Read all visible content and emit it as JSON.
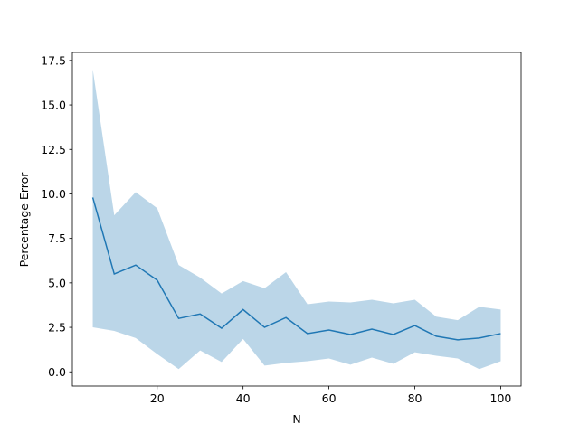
{
  "chart_data": {
    "type": "line",
    "xlabel": "N",
    "ylabel": "Percentage Error",
    "x": [
      5,
      10,
      15,
      20,
      25,
      30,
      35,
      40,
      45,
      50,
      55,
      60,
      65,
      70,
      75,
      80,
      85,
      90,
      95,
      100
    ],
    "series": [
      {
        "color": "#1f77b4",
        "values": [
          9.8,
          5.5,
          6.0,
          5.15,
          3.0,
          3.25,
          2.45,
          3.5,
          2.5,
          3.05,
          2.15,
          2.35,
          2.1,
          2.4,
          2.1,
          2.6,
          2.0,
          1.8,
          1.9,
          2.15
        ],
        "upper": [
          17.0,
          8.8,
          10.1,
          9.2,
          6.0,
          5.3,
          4.4,
          5.1,
          4.7,
          5.6,
          3.8,
          3.95,
          3.9,
          4.05,
          3.85,
          4.05,
          3.1,
          2.9,
          3.65,
          3.5
        ],
        "lower": [
          2.5,
          2.3,
          1.9,
          1.0,
          0.15,
          1.2,
          0.55,
          1.85,
          0.35,
          0.5,
          0.6,
          0.75,
          0.4,
          0.8,
          0.45,
          1.1,
          0.9,
          0.75,
          0.15,
          0.6
        ]
      }
    ],
    "xlim": [
      0.25,
      104.75
    ],
    "ylim": [
      -0.8,
      17.95
    ],
    "xticks": [
      20,
      40,
      60,
      80,
      100
    ],
    "yticks": [
      {
        "value": 0,
        "label": "0.0"
      },
      2.5,
      {
        "value": 5,
        "label": "5.0"
      },
      7.5,
      {
        "value": 10,
        "label": "10.0"
      },
      12.5,
      {
        "value": 15,
        "label": "15.0"
      },
      17.5
    ],
    "grid": false
  }
}
